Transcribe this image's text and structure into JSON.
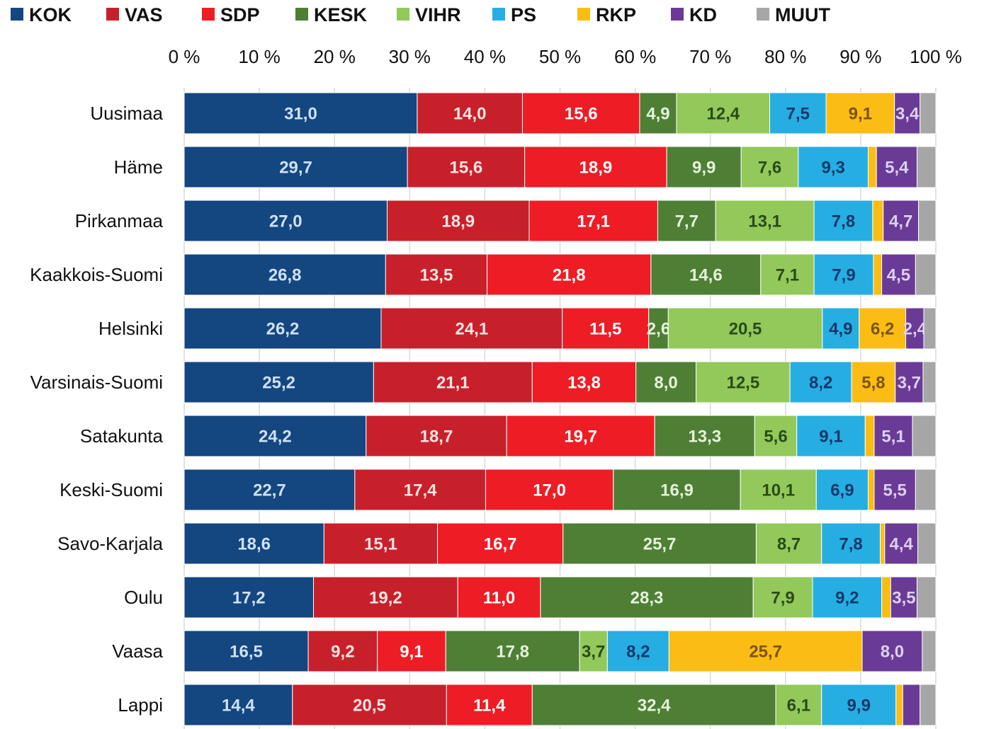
{
  "chart_data": {
    "type": "stacked_barh",
    "categories": [
      "Uusimaa",
      "Häme",
      "Pirkanmaa",
      "Kaakkois-Suomi",
      "Helsinki",
      "Varsinais-Suomi",
      "Satakunta",
      "Keski-Suomi",
      "Savo-Karjala",
      "Oulu",
      "Vaasa",
      "Lappi"
    ],
    "xlim": [
      0,
      100
    ],
    "xticks": [
      {
        "value": 0,
        "label": "0 %"
      },
      {
        "value": 10,
        "label": "10 %"
      },
      {
        "value": 20,
        "label": "20 %"
      },
      {
        "value": 30,
        "label": "30 %"
      },
      {
        "value": 40,
        "label": "40 %"
      },
      {
        "value": 50,
        "label": "50 %"
      },
      {
        "value": 60,
        "label": "60 %"
      },
      {
        "value": 70,
        "label": "70 %"
      },
      {
        "value": 80,
        "label": "80 %"
      },
      {
        "value": 90,
        "label": "90 %"
      },
      {
        "value": 100,
        "label": "100 %"
      }
    ],
    "grid": true,
    "legend": "top",
    "series": [
      {
        "name": "KOK",
        "color": "#14467f",
        "label_color": "#cfe0f5",
        "values": [
          31.0,
          29.7,
          27.0,
          26.8,
          26.2,
          25.2,
          24.2,
          22.7,
          18.6,
          17.2,
          16.5,
          14.4
        ],
        "value_labels": [
          "31,0",
          "29,7",
          "27,0",
          "26,8",
          "26,2",
          "25,2",
          "24,2",
          "22,7",
          "18,6",
          "17,2",
          "16,5",
          "14,4"
        ]
      },
      {
        "name": "VAS",
        "color": "#c8202a",
        "label_color": "#ffe4e4",
        "values": [
          14.0,
          15.6,
          18.9,
          13.5,
          24.1,
          21.1,
          18.7,
          17.4,
          15.1,
          19.2,
          9.2,
          20.5
        ],
        "value_labels": [
          "14,0",
          "15,6",
          "18,9",
          "13,5",
          "24,1",
          "21,1",
          "18,7",
          "17,4",
          "15,1",
          "19,2",
          "9,2",
          "20,5"
        ]
      },
      {
        "name": "SDP",
        "color": "#ee1c25",
        "label_color": "#ffffff",
        "values": [
          15.6,
          18.9,
          17.1,
          21.8,
          11.5,
          13.8,
          19.7,
          17.0,
          16.7,
          11.0,
          9.1,
          11.4
        ],
        "value_labels": [
          "15,6",
          "18,9",
          "17,1",
          "21,8",
          "11,5",
          "13,8",
          "19,7",
          "17,0",
          "16,7",
          "11,0",
          "9,1",
          "11,4"
        ]
      },
      {
        "name": "KESK",
        "color": "#4e7f35",
        "label_color": "#e6f2dc",
        "values": [
          4.9,
          9.9,
          7.7,
          14.6,
          2.6,
          8.0,
          13.3,
          16.9,
          25.7,
          28.3,
          17.8,
          32.4
        ],
        "value_labels": [
          "4,9",
          "9,9",
          "7,7",
          "14,6",
          "2,6",
          "8,0",
          "13,3",
          "16,9",
          "25,7",
          "28,3",
          "17,8",
          "32,4"
        ]
      },
      {
        "name": "VIHR",
        "color": "#92c95a",
        "label_color": "#2a4a1a",
        "values": [
          12.4,
          7.6,
          13.1,
          7.1,
          20.5,
          12.5,
          5.6,
          10.1,
          8.7,
          7.9,
          3.7,
          6.1
        ],
        "value_labels": [
          "12,4",
          "7,6",
          "13,1",
          "7,1",
          "20,5",
          "12,5",
          "5,6",
          "10,1",
          "8,7",
          "7,9",
          "3,7",
          "6,1"
        ]
      },
      {
        "name": "PS",
        "color": "#26aee2",
        "label_color": "#12386a",
        "values": [
          7.5,
          9.3,
          7.8,
          7.9,
          4.9,
          8.2,
          9.1,
          6.9,
          7.8,
          9.2,
          8.2,
          9.9
        ],
        "value_labels": [
          "7,5",
          "9,3",
          "7,8",
          "7,9",
          "4,9",
          "8,2",
          "9,1",
          "6,9",
          "7,8",
          "9,2",
          "8,2",
          "9,9"
        ]
      },
      {
        "name": "RKP",
        "color": "#fbbd14",
        "label_color": "#7a5410",
        "values": [
          9.1,
          1.1,
          1.4,
          1.1,
          6.2,
          5.8,
          1.2,
          0.8,
          0.6,
          1.2,
          25.7,
          0.9
        ],
        "value_labels": [
          "9,1",
          null,
          null,
          null,
          "6,2",
          "5,8",
          null,
          null,
          null,
          null,
          "25,7",
          null
        ]
      },
      {
        "name": "KD",
        "color": "#6a3b96",
        "label_color": "#ddd0f0",
        "values": [
          3.4,
          5.4,
          4.7,
          4.5,
          2.4,
          3.7,
          5.1,
          5.5,
          4.4,
          3.5,
          8.0,
          2.3
        ],
        "value_labels": [
          "3,4",
          "5,4",
          "4,7",
          "4,5",
          "2,4",
          "3,7",
          "5,1",
          "5,5",
          "4,4",
          "3,5",
          "8,0",
          null
        ]
      },
      {
        "name": "MUUT",
        "color": "#a6a6a6",
        "label_color": "#333333",
        "values": [
          2.1,
          2.5,
          2.3,
          2.7,
          1.6,
          1.7,
          3.1,
          2.7,
          2.4,
          2.5,
          1.8,
          2.1
        ],
        "value_labels": [
          null,
          null,
          null,
          null,
          null,
          null,
          null,
          null,
          null,
          null,
          null,
          null
        ]
      }
    ]
  }
}
